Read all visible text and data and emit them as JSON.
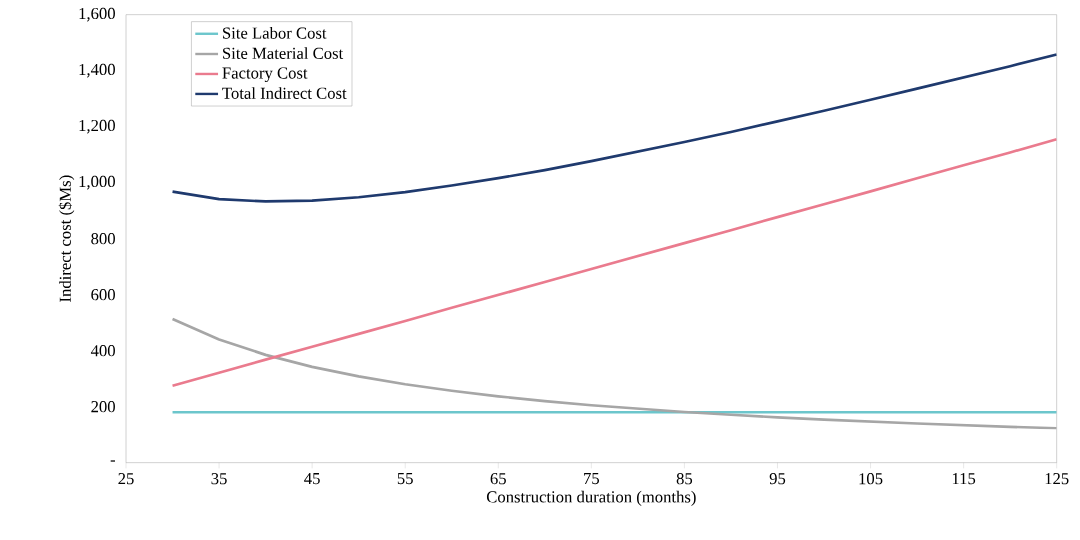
{
  "chart_data": {
    "type": "line",
    "xlabel": "Construction duration (months)",
    "ylabel": "Indirect cost ($Ms)",
    "x": [
      30,
      35,
      40,
      45,
      50,
      55,
      60,
      65,
      70,
      75,
      80,
      85,
      90,
      95,
      100,
      105,
      110,
      115,
      120,
      125
    ],
    "series": [
      {
        "name": "Site Labor Cost",
        "color": "#6cc6cc",
        "values": [
          180,
          180,
          180,
          180,
          180,
          180,
          180,
          180,
          180,
          180,
          180,
          180,
          180,
          180,
          180,
          180,
          180,
          180,
          180,
          180
        ]
      },
      {
        "name": "Site Material Cost",
        "color": "#a6a6a6",
        "values": [
          513,
          440,
          385,
          342,
          308,
          280,
          257,
          237,
          220,
          205,
          193,
          181,
          171,
          162,
          154,
          147,
          140,
          134,
          128,
          123
        ]
      },
      {
        "name": "Factory Cost",
        "color": "#ea7b8e",
        "values": [
          275,
          321,
          368,
          414,
          460,
          506,
          553,
          599,
          645,
          692,
          738,
          784,
          830,
          877,
          923,
          969,
          1016,
          1062,
          1108,
          1155
        ]
      },
      {
        "name": "Total Indirect Cost",
        "color": "#1f3a6e",
        "values": [
          968,
          941,
          933,
          936,
          948,
          966,
          990,
          1016,
          1045,
          1077,
          1111,
          1145,
          1181,
          1219,
          1257,
          1296,
          1336,
          1376,
          1416,
          1458
        ]
      }
    ],
    "xlim": [
      25,
      125
    ],
    "xticks": [
      25,
      35,
      45,
      55,
      65,
      75,
      85,
      95,
      105,
      115,
      125
    ],
    "ylim": [
      0,
      1600
    ],
    "yticks": [
      {
        "value": 0,
        "label": "-"
      },
      200,
      400,
      600,
      800,
      {
        "value": 1000,
        "label": "1,000"
      },
      {
        "value": 1200,
        "label": "1,200"
      },
      {
        "value": 1400,
        "label": "1,400"
      },
      {
        "value": 1600,
        "label": "1,600"
      }
    ],
    "legend": "top left",
    "grid": false,
    "marker": "none",
    "line_style": "solid"
  }
}
